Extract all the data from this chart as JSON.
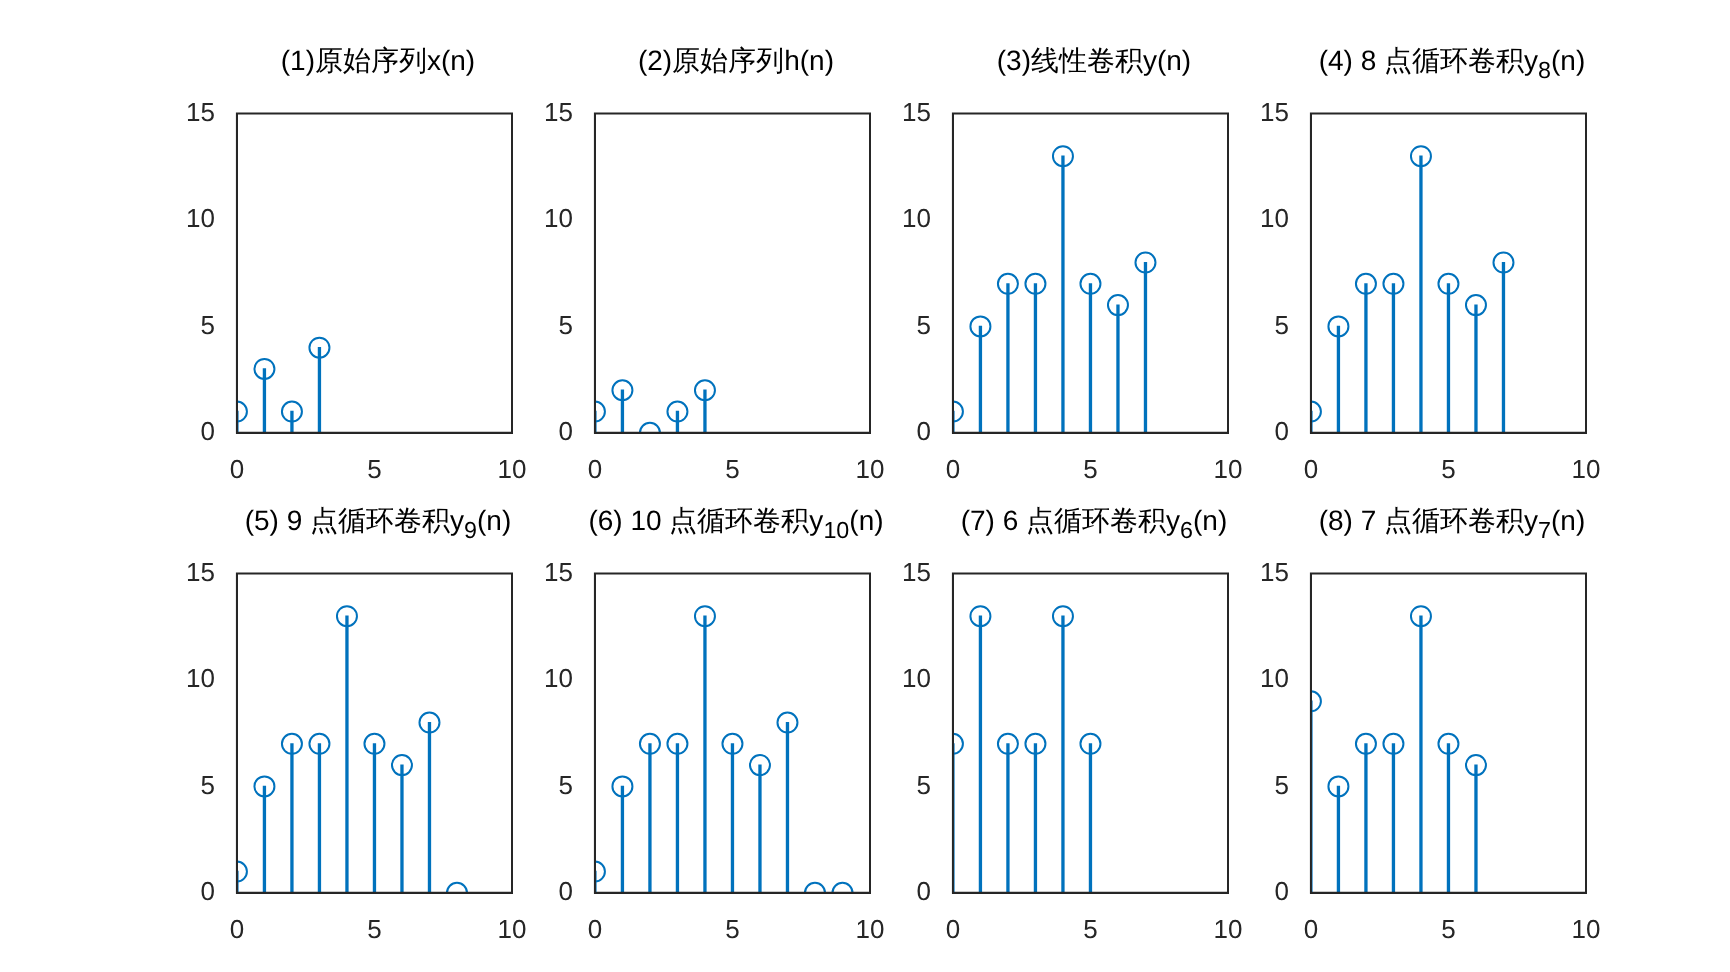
{
  "chart_data": [
    {
      "type": "lollipop",
      "title": "(1)原始序列x(n)",
      "x": [
        0,
        1,
        2,
        3
      ],
      "values": [
        1,
        3,
        1,
        4
      ],
      "color": "#0072bd",
      "marker": "circle",
      "xlim": [
        0,
        10
      ],
      "xticks": [
        0,
        5,
        10
      ],
      "ylim": [
        0,
        15
      ],
      "yticks": [
        0,
        5,
        10,
        15
      ]
    },
    {
      "type": "lollipop",
      "title": "(2)原始序列h(n)",
      "x": [
        0,
        1,
        2,
        3,
        4
      ],
      "values": [
        1,
        2,
        0,
        1,
        2
      ],
      "color": "#0072bd",
      "marker": "circle",
      "xlim": [
        0,
        10
      ],
      "xticks": [
        0,
        5,
        10
      ],
      "ylim": [
        0,
        15
      ],
      "yticks": [
        0,
        5,
        10,
        15
      ]
    },
    {
      "type": "lollipop",
      "title": "(3)线性卷积y(n)",
      "x": [
        0,
        1,
        2,
        3,
        4,
        5,
        6,
        7
      ],
      "values": [
        1,
        5,
        7,
        7,
        13,
        7,
        6,
        8
      ],
      "color": "#0072bd",
      "marker": "circle",
      "xlim": [
        0,
        10
      ],
      "xticks": [
        0,
        5,
        10
      ],
      "ylim": [
        0,
        15
      ],
      "yticks": [
        0,
        5,
        10,
        15
      ]
    },
    {
      "type": "lollipop",
      "title": "(4)  8 点循环卷积y$_{8}$(n)",
      "x": [
        0,
        1,
        2,
        3,
        4,
        5,
        6,
        7
      ],
      "values": [
        1,
        5,
        7,
        7,
        13,
        7,
        6,
        8
      ],
      "color": "#0072bd",
      "marker": "circle",
      "xlim": [
        0,
        10
      ],
      "xticks": [
        0,
        5,
        10
      ],
      "ylim": [
        0,
        15
      ],
      "yticks": [
        0,
        5,
        10,
        15
      ]
    },
    {
      "type": "lollipop",
      "title": "(5)  9 点循环卷积y$_{9}$(n)",
      "x": [
        0,
        1,
        2,
        3,
        4,
        5,
        6,
        7,
        8
      ],
      "values": [
        1,
        5,
        7,
        7,
        13,
        7,
        6,
        8,
        0
      ],
      "color": "#0072bd",
      "marker": "circle",
      "xlim": [
        0,
        10
      ],
      "xticks": [
        0,
        5,
        10
      ],
      "ylim": [
        0,
        15
      ],
      "yticks": [
        0,
        5,
        10,
        15
      ]
    },
    {
      "type": "lollipop",
      "title": "(6)  10 点循环卷积y$_{10}$(n)",
      "x": [
        0,
        1,
        2,
        3,
        4,
        5,
        6,
        7,
        8,
        9
      ],
      "values": [
        1,
        5,
        7,
        7,
        13,
        7,
        6,
        8,
        0,
        0
      ],
      "color": "#0072bd",
      "marker": "circle",
      "xlim": [
        0,
        10
      ],
      "xticks": [
        0,
        5,
        10
      ],
      "ylim": [
        0,
        15
      ],
      "yticks": [
        0,
        5,
        10,
        15
      ]
    },
    {
      "type": "lollipop",
      "title": "(7)  6 点循环卷积y$_{6}$(n)",
      "x": [
        0,
        1,
        2,
        3,
        4,
        5
      ],
      "values": [
        7,
        13,
        7,
        7,
        13,
        7
      ],
      "color": "#0072bd",
      "marker": "circle",
      "xlim": [
        0,
        10
      ],
      "xticks": [
        0,
        5,
        10
      ],
      "ylim": [
        0,
        15
      ],
      "yticks": [
        0,
        5,
        10,
        15
      ]
    },
    {
      "type": "lollipop",
      "title": "(8)  7 点循环卷积y$_{7}$(n)",
      "x": [
        0,
        1,
        2,
        3,
        4,
        5,
        6
      ],
      "values": [
        9,
        5,
        7,
        7,
        13,
        7,
        6
      ],
      "color": "#0072bd",
      "marker": "circle",
      "xlim": [
        0,
        10
      ],
      "xticks": [
        0,
        5,
        10
      ],
      "ylim": [
        0,
        15
      ],
      "yticks": [
        0,
        5,
        10,
        15
      ]
    }
  ]
}
